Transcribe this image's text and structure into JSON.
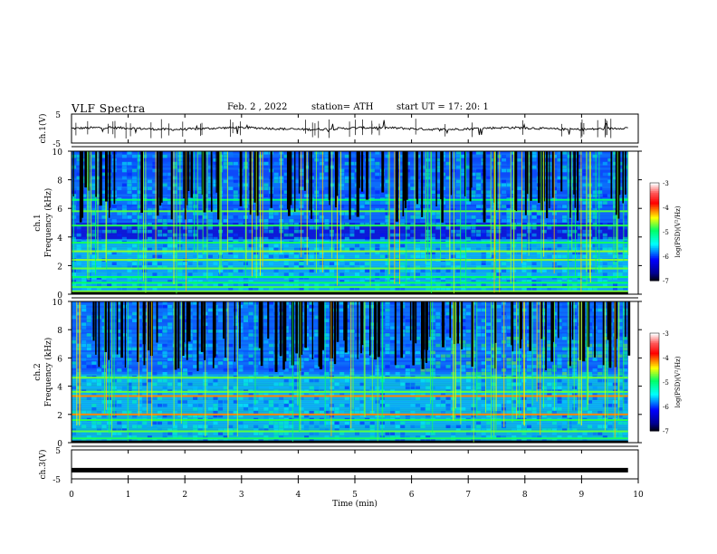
{
  "header": {
    "title": "VLF  Spectra",
    "date": "Feb. 2  , 2022",
    "station": "station= ATH",
    "start": "start  UT  =    17: 20: 1"
  },
  "chart_data": [
    {
      "id": "ch1-waveform",
      "type": "line",
      "ylabel": "ch.1(V)",
      "ylim": [
        -5,
        5
      ],
      "yticks": [
        "5",
        "-5"
      ],
      "xlim": [
        0,
        10
      ],
      "series": [
        {
          "values_mean": 0,
          "color": "#000000"
        }
      ]
    },
    {
      "id": "ch1-spectrogram",
      "type": "heatmap",
      "ylabel": "ch.1",
      "ylabel2": "Frequency  (kHz)",
      "ylim": [
        0,
        10
      ],
      "yticks": [
        "0",
        "2",
        "4",
        "6",
        "8",
        "10"
      ],
      "xlim": [
        0,
        9.8
      ],
      "colorbar": {
        "label": "log(PSD)(V²/Hz)",
        "range": [
          -7,
          -3
        ],
        "ticks": [
          "-3",
          "-4",
          "-5",
          "-6",
          "-7"
        ]
      },
      "bands_khz": [
        0.2,
        0.5,
        0.8,
        1.2,
        1.8,
        2.4,
        3.0,
        3.6,
        4.8,
        5.8,
        6.6
      ]
    },
    {
      "id": "ch2-spectrogram",
      "type": "heatmap",
      "ylabel": "ch.2",
      "ylabel2": "Frequency  (kHz)",
      "ylim": [
        0,
        10
      ],
      "yticks": [
        "0",
        "2",
        "4",
        "6",
        "8",
        "10"
      ],
      "xlim": [
        0,
        9.8
      ],
      "colorbar": {
        "label": "log(PSD)(V²/Hz)",
        "range": [
          -7,
          -3
        ],
        "ticks": [
          "-3",
          "-4",
          "-5",
          "-6",
          "-7"
        ]
      },
      "bands_khz": [
        0.3,
        0.8,
        1.6,
        2.0,
        3.3,
        3.6,
        4.6
      ]
    },
    {
      "id": "ch3-waveform",
      "type": "line",
      "ylabel": "ch.3(V)",
      "ylim": [
        -5,
        5
      ],
      "yticks": [
        "5",
        "-5"
      ],
      "xlim": [
        0,
        10
      ],
      "series": [
        {
          "values_mean": -2,
          "color": "#000000"
        }
      ]
    }
  ],
  "xaxis": {
    "label": "Time  (min)",
    "ticks": [
      "0",
      "1",
      "2",
      "3",
      "4",
      "5",
      "6",
      "7",
      "8",
      "9",
      "10"
    ]
  }
}
